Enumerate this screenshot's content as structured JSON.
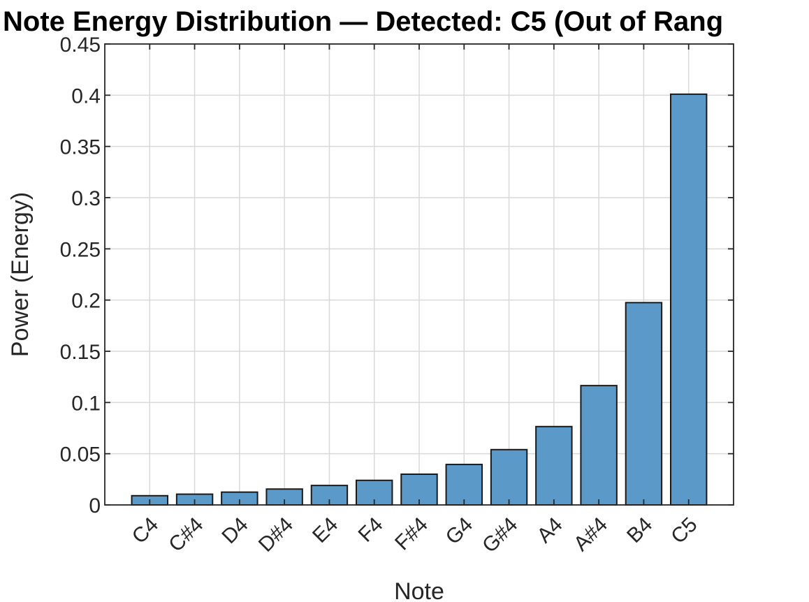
{
  "chart_data": {
    "type": "bar",
    "title": "Note Energy Distribution — Detected: C5 (Out of Rang",
    "xlabel": "Note",
    "ylabel": "Power (Energy)",
    "categories": [
      "C4",
      "C#4",
      "D4",
      "D#4",
      "E4",
      "F4",
      "F#4",
      "G4",
      "G#4",
      "A4",
      "A#4",
      "B4",
      "C5"
    ],
    "values": [
      0.009,
      0.0105,
      0.0125,
      0.0155,
      0.019,
      0.024,
      0.03,
      0.0395,
      0.054,
      0.0765,
      0.1165,
      0.1975,
      0.401
    ],
    "ylim": [
      0,
      0.45
    ],
    "yticks": [
      0,
      0.05,
      0.1,
      0.15,
      0.2,
      0.25,
      0.3,
      0.35,
      0.4,
      0.45
    ],
    "ytick_labels": [
      "0",
      "0.05",
      "0.1",
      "0.15",
      "0.2",
      "0.25",
      "0.3",
      "0.35",
      "0.4",
      "0.45"
    ],
    "grid": true,
    "colors": {
      "bar_fill": "#5b9ac8",
      "bar_edge": "#1a1a1a",
      "grid": "#d9d9d9",
      "axis": "#262626"
    }
  }
}
